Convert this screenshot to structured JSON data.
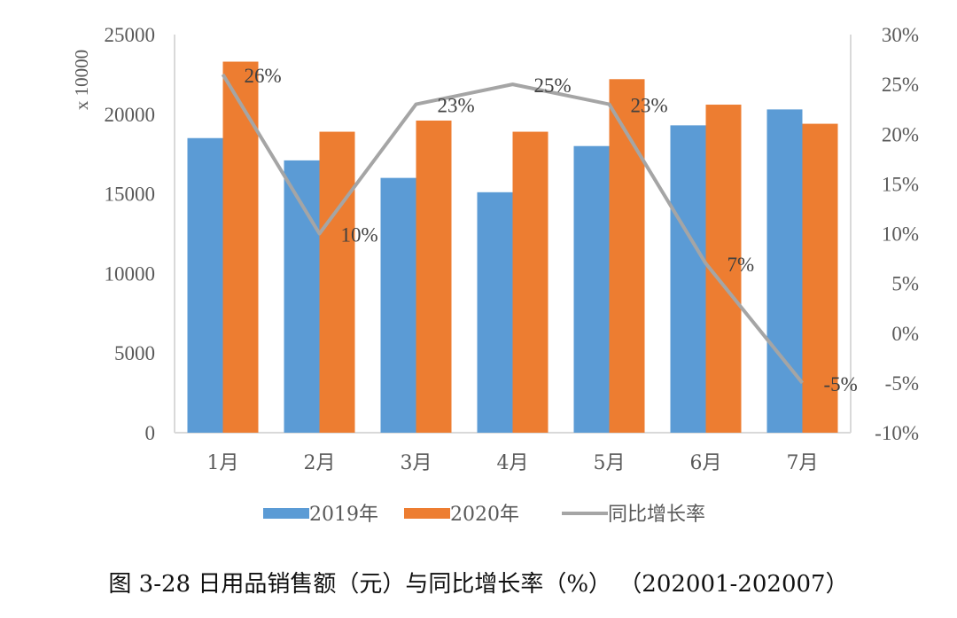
{
  "chart_data": {
    "type": "bar",
    "categories": [
      "1月",
      "2月",
      "3月",
      "4月",
      "5月",
      "6月",
      "7月"
    ],
    "series": [
      {
        "name": "2019年",
        "type": "bar",
        "axis": "left",
        "color": "#5b9bd5",
        "values": [
          18500,
          17100,
          16000,
          15100,
          18000,
          19300,
          20300
        ]
      },
      {
        "name": "2020年",
        "type": "bar",
        "axis": "left",
        "color": "#ed7d31",
        "values": [
          23300,
          18900,
          19600,
          18900,
          22200,
          20600,
          19400
        ]
      },
      {
        "name": "同比增长率",
        "type": "line",
        "axis": "right",
        "color": "#a5a5a5",
        "values": [
          26,
          10,
          23,
          25,
          23,
          7,
          -5
        ],
        "labels": [
          "26%",
          "10%",
          "23%",
          "25%",
          "23%",
          "7%",
          "-5%"
        ]
      }
    ],
    "y_left": {
      "label": "x 10000",
      "range": [
        0,
        25000
      ],
      "ticks": [
        "0",
        "5000",
        "10000",
        "15000",
        "20000",
        "25000"
      ]
    },
    "y_right": {
      "range": [
        -10,
        30
      ],
      "ticks": [
        "-10%",
        "-5%",
        "0%",
        "5%",
        "10%",
        "15%",
        "20%",
        "25%",
        "30%"
      ]
    },
    "grid": false,
    "legend": "bottom"
  },
  "caption": "图 3-28  日用品销售额（元）与同比增长率（%）   （202001-202007）"
}
